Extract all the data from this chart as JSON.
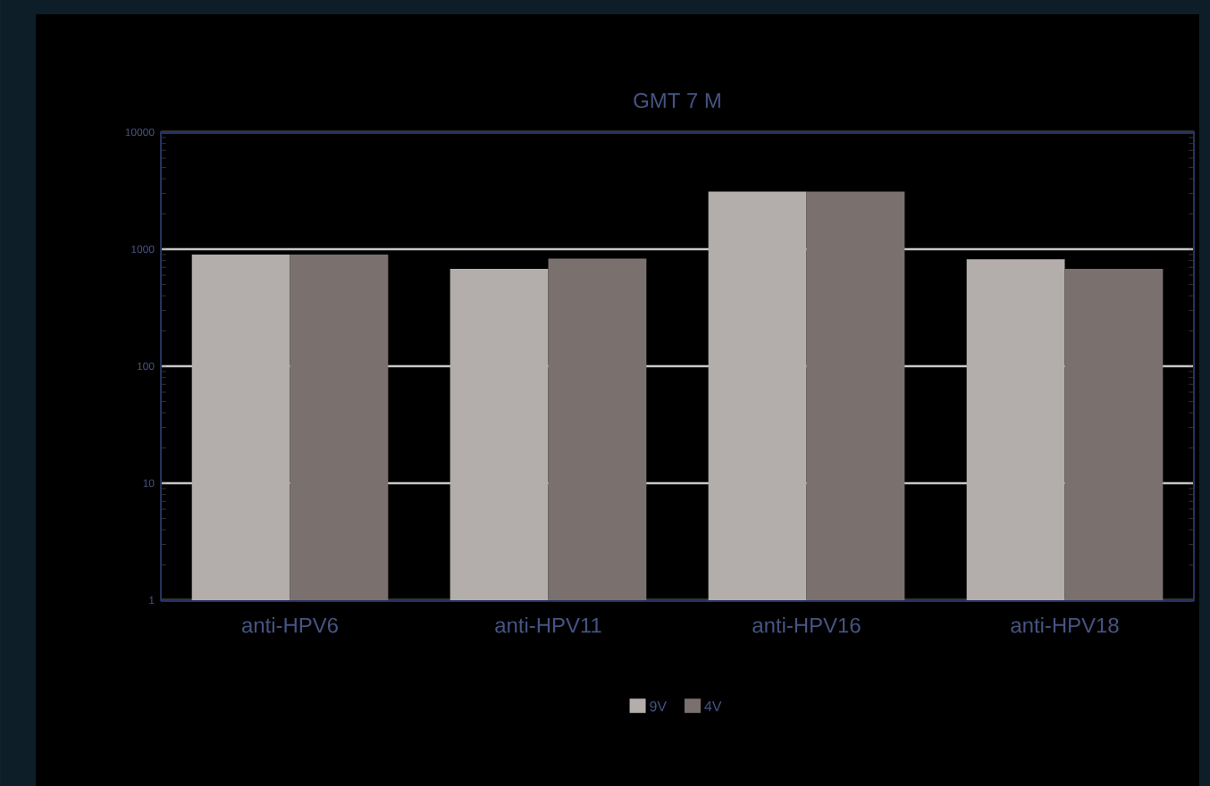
{
  "chart_data": {
    "type": "bar",
    "title": "GMT 7 M",
    "categories": [
      "anti-HPV6",
      "anti-HPV11",
      "anti-HPV16",
      "anti-HPV18"
    ],
    "series": [
      {
        "name": "9V",
        "color": "#b3aeab",
        "values": [
          900,
          680,
          3100,
          820
        ]
      },
      {
        "name": "4V",
        "color": "#7a716e",
        "values": [
          900,
          830,
          3100,
          680
        ]
      }
    ],
    "log": "y",
    "ylim": [
      1,
      10000
    ],
    "yticks": [
      1,
      10,
      100,
      1000,
      10000
    ],
    "grid": "y",
    "legend": "bottom"
  }
}
